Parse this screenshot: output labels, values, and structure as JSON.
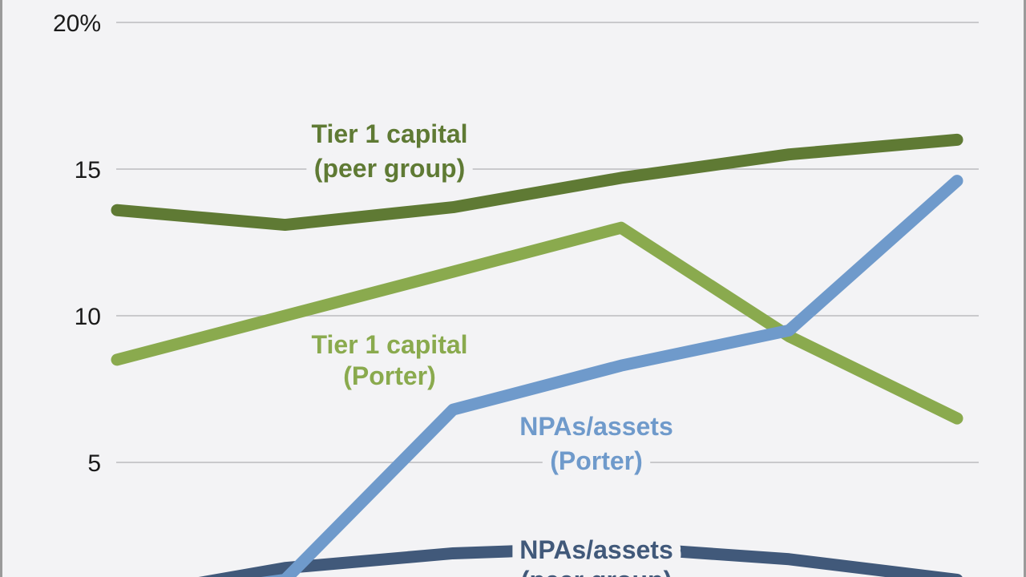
{
  "chart_data": {
    "type": "line",
    "x": [
      0,
      1,
      2,
      3,
      4,
      5
    ],
    "ylim": [
      0,
      20
    ],
    "yticks": [
      {
        "value": 5,
        "label": "5"
      },
      {
        "value": 10,
        "label": "10"
      },
      {
        "value": 15,
        "label": "15"
      },
      {
        "value": 20,
        "label": "20%"
      }
    ],
    "grid": true,
    "series": [
      {
        "key": "tier1-peer",
        "name_lines": [
          "Tier 1 capital",
          "(peer group)"
        ],
        "color": "#5f7a34",
        "values": [
          13.6,
          13.1,
          13.7,
          14.7,
          15.5,
          16.0
        ]
      },
      {
        "key": "tier1-porter",
        "name_lines": [
          "Tier 1 capital",
          "(Porter)"
        ],
        "color": "#8aaa4e",
        "values": [
          8.5,
          10.0,
          11.5,
          13.0,
          9.3,
          6.5
        ]
      },
      {
        "key": "npas-porter",
        "name_lines": [
          "NPAs/assets",
          "(Porter)"
        ],
        "color": "#6f9acb",
        "values": [
          0.2,
          1.0,
          6.8,
          8.3,
          9.5,
          14.6
        ]
      },
      {
        "key": "npas-peer",
        "name_lines": [
          "NPAs/assets",
          "(peer group)"
        ],
        "color": "#41597a",
        "values": [
          0.4,
          1.4,
          1.9,
          2.1,
          1.7,
          1.0
        ]
      }
    ]
  }
}
